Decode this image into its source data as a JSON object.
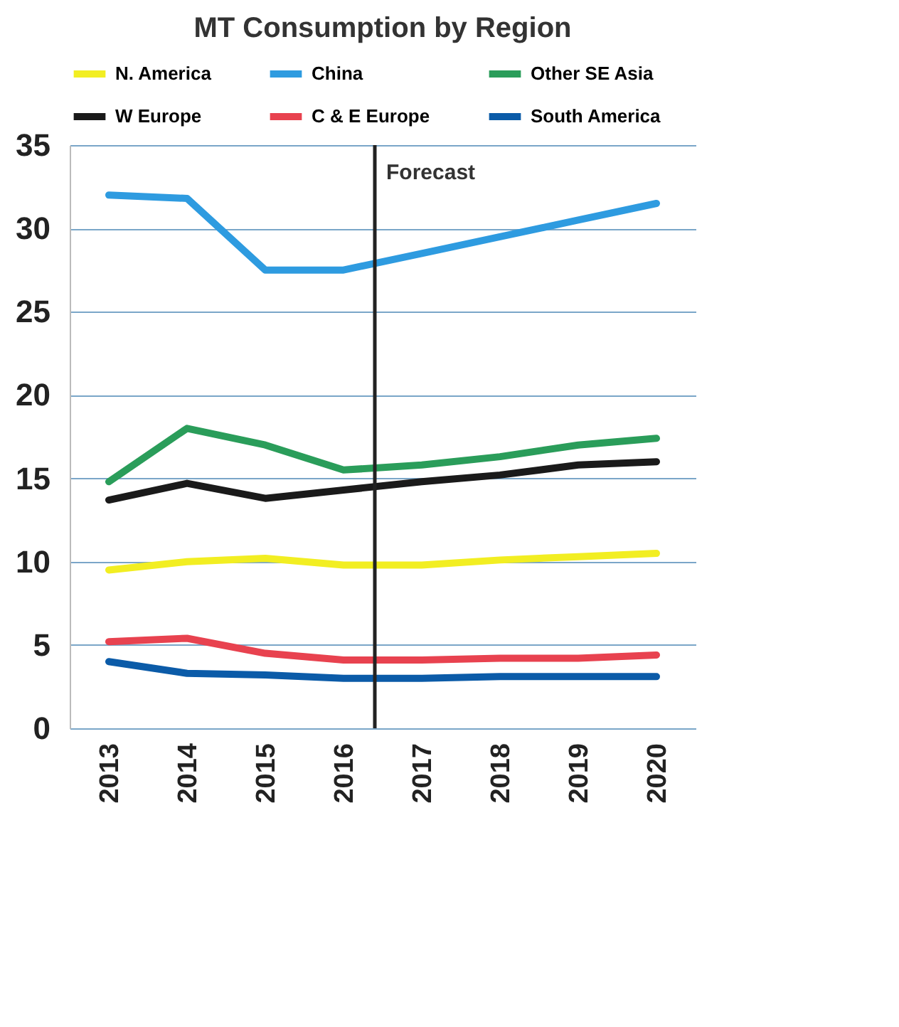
{
  "chart_data": {
    "type": "line",
    "title": "MT Consumption by Region",
    "x": [
      2013,
      2014,
      2015,
      2016,
      2017,
      2018,
      2019,
      2020
    ],
    "xlim": [
      2012.5,
      2020.5
    ],
    "xticks": [
      2013,
      2014,
      2015,
      2016,
      2017,
      2018,
      2019,
      2020
    ],
    "ylim": [
      0,
      35
    ],
    "yticks": [
      0,
      5,
      10,
      15,
      20,
      25,
      30,
      35
    ],
    "grid": "y",
    "legend": "top",
    "marker": "none",
    "line_style": "solid",
    "series": [
      {
        "name": "N. America",
        "color": "#f2ee22",
        "values": [
          9.5,
          10,
          10.2,
          9.8,
          9.8,
          10.1,
          10.3,
          10.5
        ]
      },
      {
        "name": "China",
        "color": "#2e9be0",
        "values": [
          32,
          31.8,
          27.5,
          27.5,
          28.5,
          29.5,
          30.5,
          31.5
        ]
      },
      {
        "name": "Other SE Asia",
        "color": "#2a9d5a",
        "values": [
          14.8,
          18,
          17,
          15.5,
          15.8,
          16.3,
          17,
          17.4
        ]
      },
      {
        "name": "W Europe",
        "color": "#1a1a1a",
        "values": [
          13.7,
          14.7,
          13.8,
          14.3,
          14.8,
          15.2,
          15.8,
          16
        ]
      },
      {
        "name": "C & E Europe",
        "color": "#e8424f",
        "values": [
          5.2,
          5.4,
          4.5,
          4.1,
          4.1,
          4.2,
          4.2,
          4.4
        ]
      },
      {
        "name": "South America",
        "color": "#0b5ba8",
        "values": [
          4,
          3.3,
          3.2,
          3,
          3,
          3.1,
          3.1,
          3.1
        ]
      }
    ],
    "ref_lines": [
      {
        "axis": "x",
        "value": 2016.4,
        "label": "Forecast",
        "color": "#222222"
      }
    ]
  }
}
